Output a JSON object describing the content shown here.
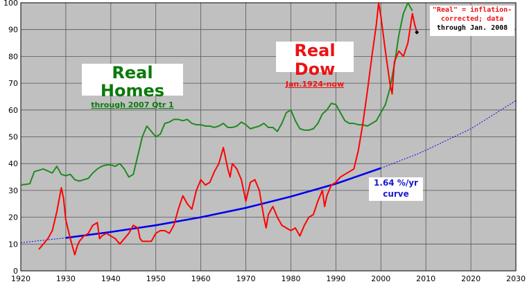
{
  "chart_data": {
    "type": "line",
    "title": "",
    "xlabel": "",
    "ylabel": "",
    "xlim": [
      1920,
      2030
    ],
    "ylim": [
      0,
      100
    ],
    "x_ticks": [
      "1920",
      "1930",
      "1940",
      "1950",
      "1960",
      "1970",
      "1980",
      "1990",
      "2000",
      "2010",
      "2020",
      "2030"
    ],
    "y_ticks": [
      "0",
      "10",
      "20",
      "30",
      "40",
      "50",
      "60",
      "70",
      "80",
      "90",
      "100"
    ],
    "grid": true,
    "colors": {
      "plot_bg": "#c0c0c0",
      "homes": "#1e8a1e",
      "dow": "#ff0000",
      "curve": "#0000ee",
      "grid": "#555555"
    },
    "series": [
      {
        "name": "Real Homes",
        "x": [
          1920,
          1922,
          1923,
          1925,
          1927,
          1928,
          1929,
          1930,
          1931,
          1932,
          1933,
          1934,
          1935,
          1936,
          1937,
          1938,
          1939,
          1940,
          1941,
          1942,
          1943,
          1944,
          1945,
          1946,
          1947,
          1948,
          1949,
          1950,
          1951,
          1952,
          1953,
          1954,
          1955,
          1956,
          1957,
          1958,
          1959,
          1960,
          1961,
          1962,
          1963,
          1964,
          1965,
          1966,
          1967,
          1968,
          1969,
          1970,
          1971,
          1972,
          1973,
          1974,
          1975,
          1976,
          1977,
          1978,
          1979,
          1980,
          1981,
          1982,
          1983,
          1984,
          1985,
          1986,
          1987,
          1988,
          1989,
          1990,
          1991,
          1992,
          1993,
          1994,
          1995,
          1996,
          1997,
          1998,
          1999,
          2000,
          2001,
          2002,
          2003,
          2004,
          2005,
          2006,
          2007
        ],
        "y": [
          32,
          32.5,
          37,
          38,
          36.5,
          39,
          36,
          35.5,
          36,
          34,
          33.5,
          34,
          34.5,
          36.5,
          38,
          39,
          39.5,
          39.5,
          39,
          40,
          38,
          35,
          36,
          43,
          50,
          54,
          52,
          50,
          51,
          55,
          55.5,
          56.5,
          56.5,
          56,
          56.5,
          55,
          54.5,
          54.5,
          54,
          54,
          53.5,
          54,
          55,
          53.5,
          53.5,
          54,
          55.5,
          54.5,
          53,
          53.5,
          54,
          55,
          53.5,
          53.5,
          52,
          55,
          59,
          60,
          56,
          53,
          52.5,
          52.5,
          53,
          55,
          58.5,
          60,
          62.5,
          62,
          59,
          56,
          55,
          55,
          54.5,
          54.5,
          54,
          55,
          56,
          59,
          62,
          68,
          77,
          88,
          96,
          100,
          97
        ]
      },
      {
        "name": "Real Dow",
        "x": [
          1924,
          1925,
          1926,
          1927,
          1928,
          1929,
          1929.5,
          1930,
          1931,
          1932,
          1932.5,
          1933,
          1934,
          1935,
          1936,
          1937,
          1937.5,
          1938,
          1939,
          1940,
          1941,
          1942,
          1943,
          1944,
          1945,
          1946,
          1946.5,
          1947,
          1948,
          1949,
          1950,
          1951,
          1952,
          1953,
          1954,
          1955,
          1956,
          1957,
          1958,
          1959,
          1960,
          1961,
          1962,
          1963,
          1964,
          1965,
          1966,
          1966.5,
          1967,
          1968,
          1969,
          1970,
          1971,
          1972,
          1973,
          1974,
          1974.5,
          1975,
          1976,
          1977,
          1978,
          1979,
          1980,
          1981,
          1982,
          1983,
          1984,
          1985,
          1986,
          1987,
          1987.5,
          1988,
          1989,
          1990,
          1991,
          1992,
          1993,
          1994,
          1995,
          1996,
          1997,
          1998,
          1999,
          1999.5,
          2000,
          2001,
          2002,
          2002.5,
          2003,
          2004,
          2005,
          2006,
          2007,
          2007.5,
          2008
        ],
        "y": [
          8,
          10,
          12,
          15,
          22,
          31,
          27,
          19,
          12,
          6,
          9,
          11,
          13,
          14,
          17,
          18,
          12,
          13,
          14,
          13,
          12,
          10,
          12,
          14,
          17,
          16,
          12,
          11,
          11,
          11,
          14,
          15,
          15,
          14,
          17,
          23,
          28,
          25,
          23,
          30,
          34,
          32,
          33,
          37,
          40,
          46,
          38,
          35,
          40,
          38,
          34,
          26,
          33,
          34,
          30,
          20,
          16,
          21,
          24,
          20,
          17,
          16,
          15,
          16,
          13,
          17,
          20,
          21,
          26,
          30,
          24,
          28,
          32,
          33,
          35,
          36,
          37,
          38,
          45,
          55,
          67,
          80,
          92,
          100,
          95,
          82,
          70,
          66,
          78,
          82,
          80,
          85,
          96,
          92,
          89
        ]
      },
      {
        "name": "1.64 %/yr curve",
        "style": "projection",
        "rate_percent": 1.64,
        "x": [
          1920,
          1930,
          1940,
          1950,
          1960,
          1970,
          1980,
          1990,
          2000,
          2008,
          2010,
          2020,
          2030
        ],
        "y": [
          10.5,
          12.3,
          14.5,
          17.0,
          20.0,
          23.5,
          27.7,
          32.5,
          38.3,
          43.5,
          45.0,
          53.0,
          63.5
        ]
      }
    ]
  },
  "labels": {
    "homes_title": "Real Homes",
    "homes_subtitle": "through 2007 Qtr 1",
    "dow_title": "Real Dow",
    "dow_subtitle": "Jan.1924-now",
    "curve_rate": "1.64 %/yr",
    "curve_word": "curve",
    "note_line1": "\"Real\" = inflation-",
    "note_line2": "corrected; data",
    "note_line3": "through Jan. 2008"
  }
}
